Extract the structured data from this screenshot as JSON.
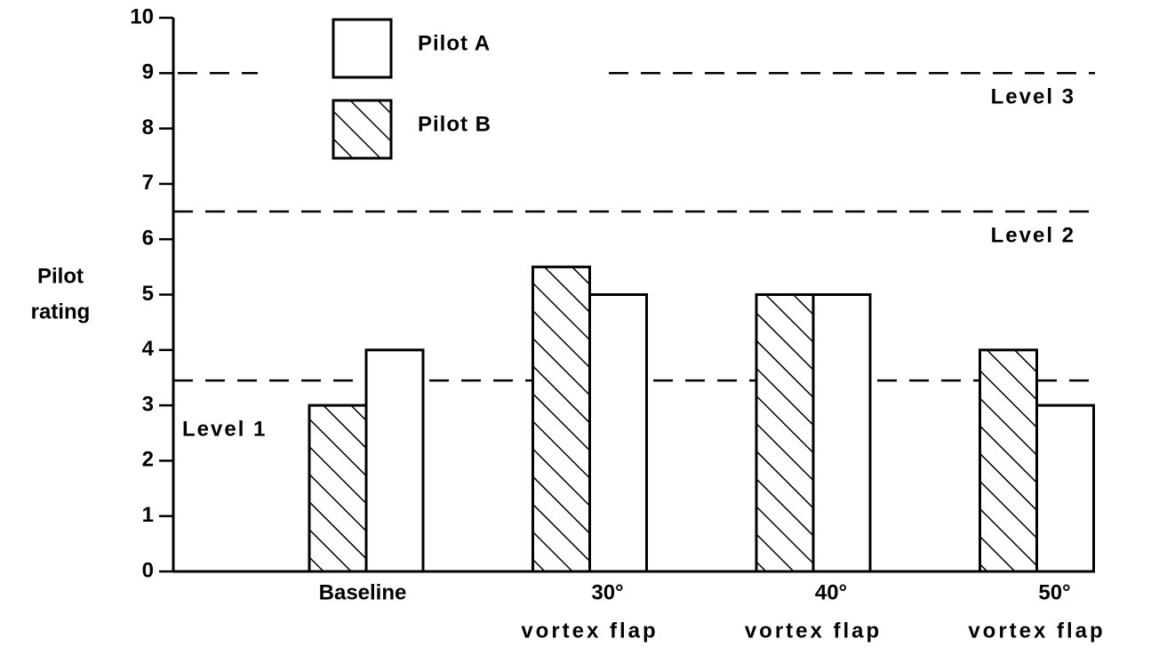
{
  "chart_data": {
    "type": "bar",
    "ylabel": [
      "Pilot",
      "rating"
    ],
    "categories": [
      [
        "Baseline"
      ],
      [
        "30°",
        "vortex flap"
      ],
      [
        "40°",
        "vortex flap"
      ],
      [
        "50°",
        "vortex flap"
      ]
    ],
    "series": [
      {
        "name": "Pilot A",
        "color": "#ffffff",
        "pattern": "none",
        "values": [
          4,
          5,
          5,
          3
        ]
      },
      {
        "name": "Pilot B",
        "color": "#ffffff",
        "pattern": "hatch",
        "values": [
          3,
          5.5,
          5,
          4
        ]
      }
    ],
    "ylim": [
      0,
      10
    ],
    "yticks": [
      0,
      1,
      2,
      3,
      4,
      5,
      6,
      7,
      8,
      9,
      10
    ],
    "levels": [
      {
        "label": "Level 3",
        "boundary": 9
      },
      {
        "label": "Level 2",
        "boundary": 6.5
      },
      {
        "label": "Level 1",
        "boundary": 3.45
      }
    ]
  }
}
